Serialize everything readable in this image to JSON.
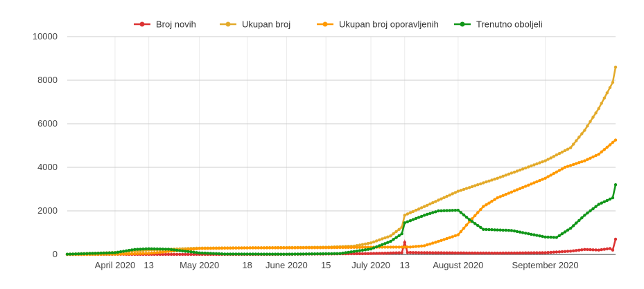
{
  "chart_data": {
    "type": "line",
    "title": "",
    "xlabel": "",
    "ylabel": "",
    "ylim": [
      0,
      10000
    ],
    "yticks": [
      0,
      2000,
      4000,
      6000,
      8000,
      10000
    ],
    "xlim": [
      "2020-03-15",
      "2020-09-26"
    ],
    "x_ticks": [
      {
        "date": "2020-04-01",
        "label": "April 2020"
      },
      {
        "date": "2020-04-13",
        "label": "13"
      },
      {
        "date": "2020-05-01",
        "label": "May 2020"
      },
      {
        "date": "2020-05-18",
        "label": "18"
      },
      {
        "date": "2020-06-01",
        "label": "June 2020"
      },
      {
        "date": "2020-06-15",
        "label": "15"
      },
      {
        "date": "2020-07-01",
        "label": "July 2020"
      },
      {
        "date": "2020-07-13",
        "label": "13"
      },
      {
        "date": "2020-08-01",
        "label": "August 2020"
      },
      {
        "date": "2020-09-01",
        "label": "September 2020"
      }
    ],
    "grid": true,
    "legend_position": "top",
    "series": [
      {
        "name": "Broj novih",
        "color": "#dc3232",
        "points": [
          [
            "2020-03-15",
            0
          ],
          [
            "2020-04-01",
            5
          ],
          [
            "2020-05-01",
            3
          ],
          [
            "2020-06-01",
            5
          ],
          [
            "2020-07-01",
            40
          ],
          [
            "2020-07-12",
            80
          ],
          [
            "2020-07-13",
            550
          ],
          [
            "2020-07-14",
            90
          ],
          [
            "2020-07-20",
            80
          ],
          [
            "2020-08-01",
            70
          ],
          [
            "2020-08-15",
            60
          ],
          [
            "2020-09-01",
            80
          ],
          [
            "2020-09-10",
            150
          ],
          [
            "2020-09-15",
            230
          ],
          [
            "2020-09-20",
            200
          ],
          [
            "2020-09-24",
            270
          ],
          [
            "2020-09-25",
            200
          ],
          [
            "2020-09-26",
            700
          ]
        ]
      },
      {
        "name": "Ukupan broj",
        "color": "#e3aa2a",
        "points": [
          [
            "2020-03-15",
            10
          ],
          [
            "2020-04-01",
            90
          ],
          [
            "2020-04-13",
            200
          ],
          [
            "2020-05-01",
            290
          ],
          [
            "2020-05-18",
            305
          ],
          [
            "2020-06-01",
            315
          ],
          [
            "2020-06-15",
            330
          ],
          [
            "2020-06-25",
            380
          ],
          [
            "2020-07-01",
            530
          ],
          [
            "2020-07-08",
            850
          ],
          [
            "2020-07-12",
            1250
          ],
          [
            "2020-07-13",
            1800
          ],
          [
            "2020-07-20",
            2200
          ],
          [
            "2020-08-01",
            2900
          ],
          [
            "2020-08-15",
            3500
          ],
          [
            "2020-09-01",
            4300
          ],
          [
            "2020-09-10",
            4900
          ],
          [
            "2020-09-15",
            5700
          ],
          [
            "2020-09-20",
            6700
          ],
          [
            "2020-09-25",
            7900
          ],
          [
            "2020-09-26",
            8600
          ]
        ]
      },
      {
        "name": "Ukupan broj oporavljenih",
        "color": "#ff9900",
        "points": [
          [
            "2020-03-15",
            0
          ],
          [
            "2020-04-01",
            10
          ],
          [
            "2020-04-13",
            50
          ],
          [
            "2020-05-01",
            270
          ],
          [
            "2020-05-18",
            300
          ],
          [
            "2020-06-01",
            305
          ],
          [
            "2020-06-15",
            310
          ],
          [
            "2020-07-01",
            330
          ],
          [
            "2020-07-15",
            340
          ],
          [
            "2020-07-20",
            400
          ],
          [
            "2020-07-25",
            600
          ],
          [
            "2020-08-01",
            900
          ],
          [
            "2020-08-05",
            1500
          ],
          [
            "2020-08-10",
            2200
          ],
          [
            "2020-08-15",
            2600
          ],
          [
            "2020-09-01",
            3500
          ],
          [
            "2020-09-08",
            4000
          ],
          [
            "2020-09-15",
            4300
          ],
          [
            "2020-09-20",
            4600
          ],
          [
            "2020-09-26",
            5250
          ]
        ]
      },
      {
        "name": "Trenutno oboljeli",
        "color": "#109618",
        "points": [
          [
            "2020-03-15",
            10
          ],
          [
            "2020-04-01",
            80
          ],
          [
            "2020-04-08",
            230
          ],
          [
            "2020-04-13",
            260
          ],
          [
            "2020-04-20",
            240
          ],
          [
            "2020-05-01",
            70
          ],
          [
            "2020-05-10",
            20
          ],
          [
            "2020-06-01",
            10
          ],
          [
            "2020-06-20",
            40
          ],
          [
            "2020-07-01",
            250
          ],
          [
            "2020-07-08",
            600
          ],
          [
            "2020-07-12",
            950
          ],
          [
            "2020-07-13",
            1450
          ],
          [
            "2020-07-20",
            1800
          ],
          [
            "2020-07-25",
            2000
          ],
          [
            "2020-08-01",
            2030
          ],
          [
            "2020-08-05",
            1600
          ],
          [
            "2020-08-10",
            1150
          ],
          [
            "2020-08-20",
            1100
          ],
          [
            "2020-09-01",
            800
          ],
          [
            "2020-09-05",
            780
          ],
          [
            "2020-09-10",
            1200
          ],
          [
            "2020-09-15",
            1800
          ],
          [
            "2020-09-20",
            2300
          ],
          [
            "2020-09-25",
            2600
          ],
          [
            "2020-09-26",
            3200
          ]
        ]
      }
    ]
  }
}
